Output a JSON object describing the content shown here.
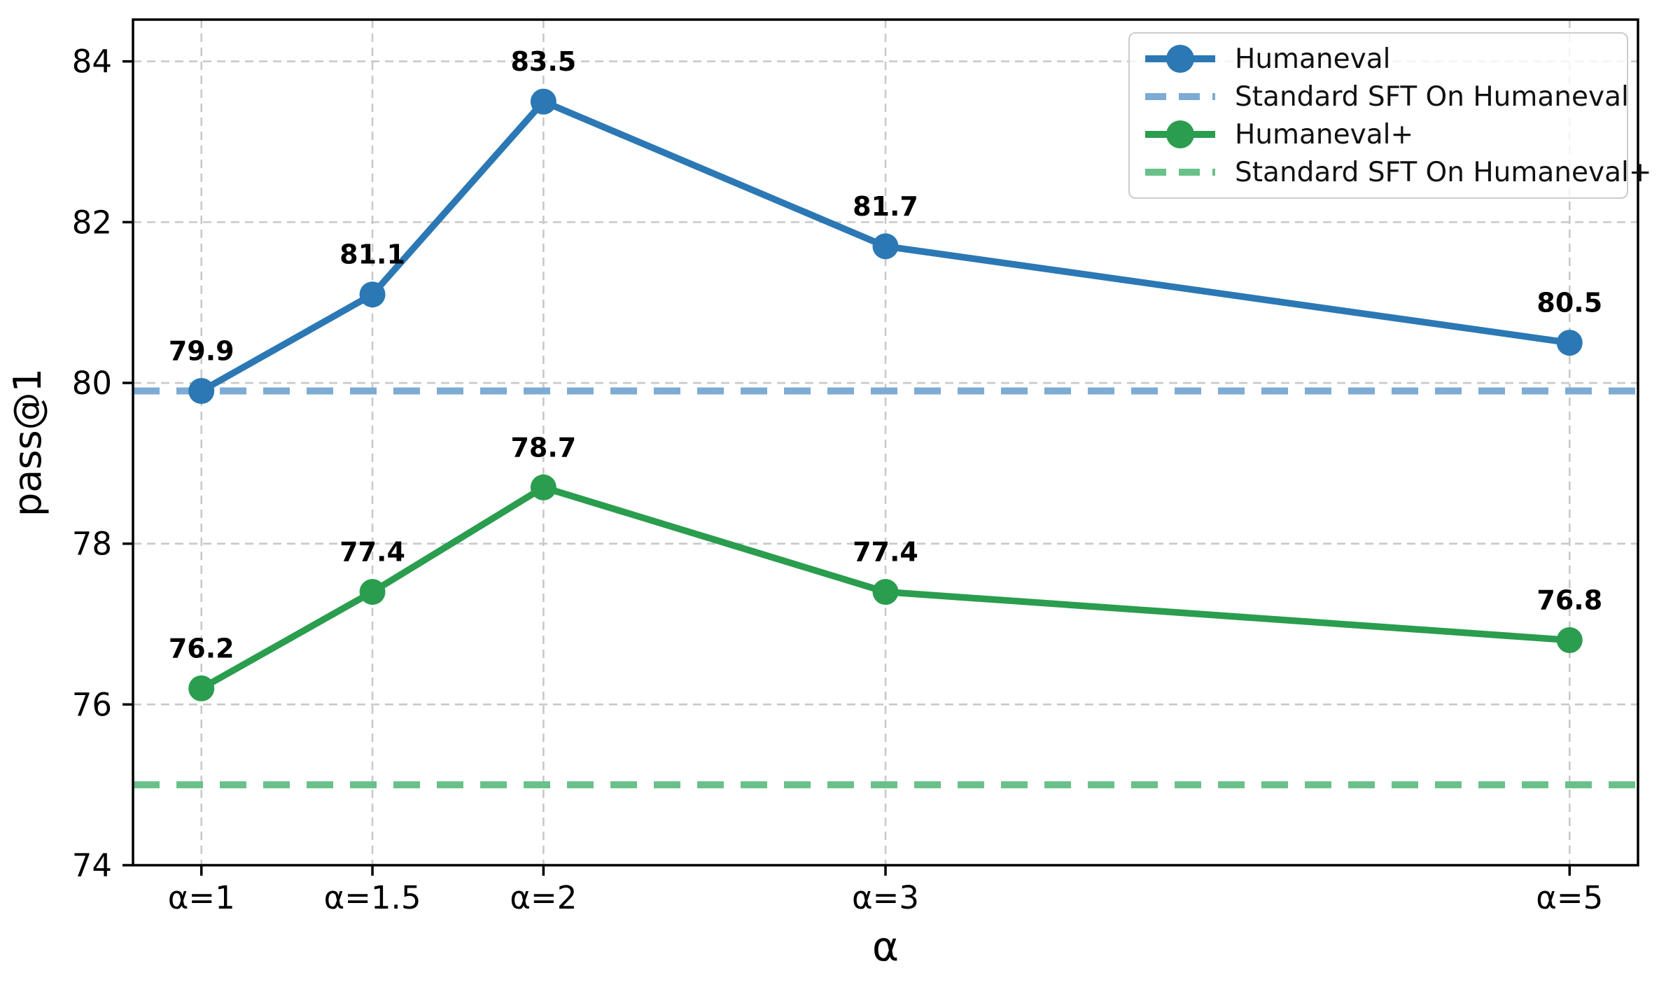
{
  "figure": {
    "background": "#ffffff",
    "grid_color": "#c9c9c9",
    "spine_color": "#000000",
    "legend_border_color": "#cccccc"
  },
  "chart_data": {
    "type": "line",
    "title": "",
    "xlabel": "α",
    "ylabel": "pass@1",
    "x": [
      1,
      1.5,
      2,
      3,
      5
    ],
    "x_tick_labels": [
      "α=1",
      "α=1.5",
      "α=2",
      "α=3",
      "α=5"
    ],
    "y_ticks": [
      74,
      76,
      78,
      80,
      82,
      84
    ],
    "y_tick_labels": [
      "74",
      "76",
      "78",
      "80",
      "82",
      "84"
    ],
    "xlim": [
      0.8,
      5.2
    ],
    "ylim": [
      74,
      84.52
    ],
    "grid": true,
    "legend_position": "upper right",
    "series": [
      {
        "name": "Humaneval",
        "kind": "line-marker",
        "color": "#2b78b4",
        "values": [
          79.9,
          81.1,
          83.5,
          81.7,
          80.5
        ],
        "point_labels": [
          "79.9",
          "81.1",
          "83.5",
          "81.7",
          "80.5"
        ]
      },
      {
        "name": "Standard SFT On Humaneval",
        "kind": "dashed-hline",
        "color": "#7dabd3",
        "value": 79.9
      },
      {
        "name": "Humaneval+",
        "kind": "line-marker",
        "color": "#2a9d4e",
        "values": [
          76.2,
          77.4,
          78.7,
          77.4,
          76.8
        ],
        "point_labels": [
          "76.2",
          "77.4",
          "78.7",
          "77.4",
          "76.8"
        ]
      },
      {
        "name": "Standard SFT On Humaneval+",
        "kind": "dashed-hline",
        "color": "#69c189",
        "value": 75.0
      }
    ]
  }
}
